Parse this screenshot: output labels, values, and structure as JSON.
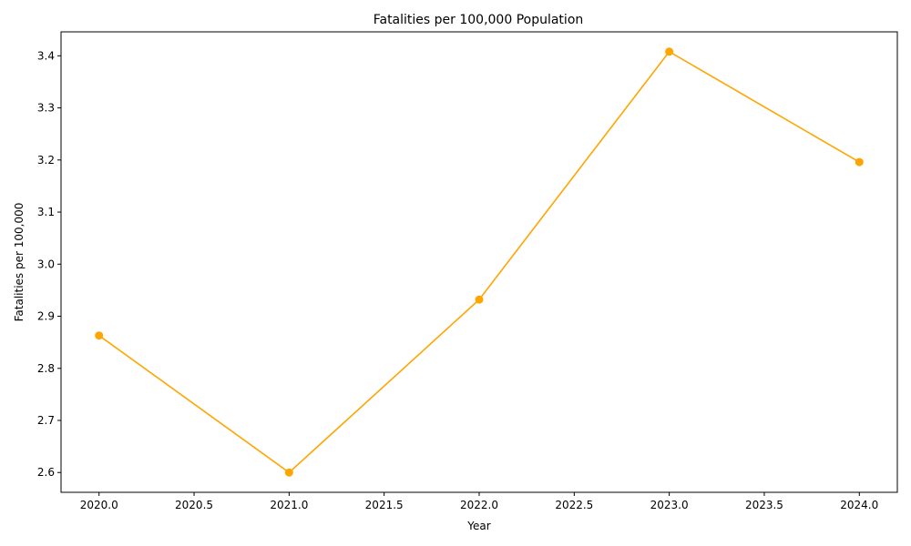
{
  "chart_data": {
    "type": "line",
    "title": "Fatalities per 100,000 Population",
    "xlabel": "Year",
    "ylabel": "Fatalities per 100,000",
    "x": [
      2020,
      2021,
      2022,
      2023,
      2024
    ],
    "series": [
      {
        "values": [
          2.863,
          2.6,
          2.932,
          3.408,
          3.196
        ],
        "color": "#ffa500",
        "marker": "circle"
      }
    ],
    "xlim": [
      2019.8,
      2024.2
    ],
    "ylim": [
      2.562,
      3.446
    ],
    "xticks": [
      "2020.0",
      "2020.5",
      "2021.0",
      "2021.5",
      "2022.0",
      "2022.5",
      "2023.0",
      "2023.5",
      "2024.0"
    ],
    "yticks": [
      "2.6",
      "2.7",
      "2.8",
      "2.9",
      "3.0",
      "3.1",
      "3.2",
      "3.3",
      "3.4"
    ],
    "grid": false,
    "legend": false
  }
}
